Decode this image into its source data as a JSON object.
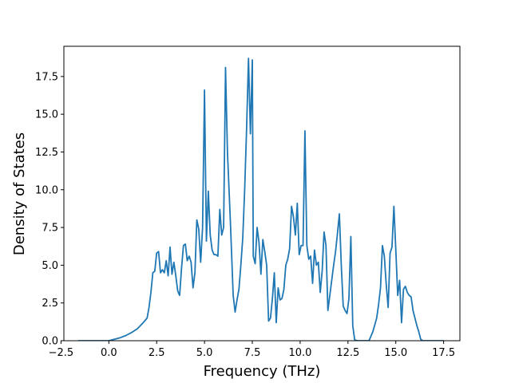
{
  "chart_data": {
    "type": "line",
    "title": "",
    "xlabel": "Frequency (THz)",
    "ylabel": "Density of States",
    "xlim": [
      -2.35,
      18.35
    ],
    "ylim": [
      0,
      19.5
    ],
    "xticks": [
      {
        "value": -2.5,
        "label": "−2.5"
      },
      {
        "value": 0.0,
        "label": "0.0"
      },
      {
        "value": 2.5,
        "label": "2.5"
      },
      {
        "value": 5.0,
        "label": "5.0"
      },
      {
        "value": 7.5,
        "label": "7.5"
      },
      {
        "value": 10.0,
        "label": "10.0"
      },
      {
        "value": 12.5,
        "label": "12.5"
      },
      {
        "value": 15.0,
        "label": "15.0"
      },
      {
        "value": 17.5,
        "label": "17.5"
      }
    ],
    "yticks": [
      {
        "value": 0.0,
        "label": "0.0"
      },
      {
        "value": 2.5,
        "label": "2.5"
      },
      {
        "value": 5.0,
        "label": "5.0"
      },
      {
        "value": 7.5,
        "label": "7.5"
      },
      {
        "value": 10.0,
        "label": "10.0"
      },
      {
        "value": 12.5,
        "label": "12.5"
      },
      {
        "value": 15.0,
        "label": "15.0"
      },
      {
        "value": 17.5,
        "label": "17.5"
      }
    ],
    "grid": false,
    "series": [
      {
        "color": "#1f77b4",
        "points": [
          [
            -1.6,
            0.0
          ],
          [
            -1.0,
            0.0
          ],
          [
            -0.5,
            0.0
          ],
          [
            0.0,
            0.0
          ],
          [
            0.3,
            0.1
          ],
          [
            0.6,
            0.2
          ],
          [
            0.9,
            0.35
          ],
          [
            1.2,
            0.55
          ],
          [
            1.5,
            0.8
          ],
          [
            1.8,
            1.2
          ],
          [
            2.0,
            1.5
          ],
          [
            2.1,
            2.2
          ],
          [
            2.2,
            3.2
          ],
          [
            2.3,
            4.5
          ],
          [
            2.4,
            4.6
          ],
          [
            2.5,
            5.8
          ],
          [
            2.6,
            5.9
          ],
          [
            2.7,
            4.5
          ],
          [
            2.8,
            4.7
          ],
          [
            2.9,
            4.5
          ],
          [
            3.0,
            5.3
          ],
          [
            3.1,
            4.3
          ],
          [
            3.2,
            6.2
          ],
          [
            3.3,
            4.4
          ],
          [
            3.4,
            5.2
          ],
          [
            3.5,
            4.3
          ],
          [
            3.6,
            3.3
          ],
          [
            3.7,
            3.0
          ],
          [
            3.8,
            4.8
          ],
          [
            3.9,
            6.3
          ],
          [
            4.0,
            6.4
          ],
          [
            4.1,
            5.3
          ],
          [
            4.2,
            5.6
          ],
          [
            4.3,
            5.2
          ],
          [
            4.4,
            3.5
          ],
          [
            4.5,
            4.5
          ],
          [
            4.6,
            8.0
          ],
          [
            4.7,
            7.4
          ],
          [
            4.8,
            5.2
          ],
          [
            4.9,
            7.5
          ],
          [
            5.0,
            16.6
          ],
          [
            5.1,
            6.6
          ],
          [
            5.2,
            9.9
          ],
          [
            5.3,
            7.0
          ],
          [
            5.4,
            6.0
          ],
          [
            5.5,
            5.7
          ],
          [
            5.6,
            5.7
          ],
          [
            5.7,
            5.6
          ],
          [
            5.8,
            8.7
          ],
          [
            5.9,
            7.0
          ],
          [
            6.0,
            7.5
          ],
          [
            6.1,
            18.1
          ],
          [
            6.2,
            12.5
          ],
          [
            6.35,
            8.0
          ],
          [
            6.5,
            3.0
          ],
          [
            6.6,
            1.9
          ],
          [
            6.7,
            2.7
          ],
          [
            6.8,
            3.4
          ],
          [
            6.9,
            5.0
          ],
          [
            7.0,
            6.8
          ],
          [
            7.1,
            10.0
          ],
          [
            7.2,
            14.0
          ],
          [
            7.3,
            18.7
          ],
          [
            7.4,
            13.7
          ],
          [
            7.5,
            18.6
          ],
          [
            7.55,
            5.6
          ],
          [
            7.65,
            5.1
          ],
          [
            7.75,
            7.5
          ],
          [
            7.85,
            6.5
          ],
          [
            7.95,
            4.4
          ],
          [
            8.05,
            6.7
          ],
          [
            8.15,
            5.9
          ],
          [
            8.25,
            5.0
          ],
          [
            8.35,
            1.3
          ],
          [
            8.45,
            1.5
          ],
          [
            8.55,
            2.8
          ],
          [
            8.65,
            4.5
          ],
          [
            8.75,
            1.2
          ],
          [
            8.85,
            3.5
          ],
          [
            8.95,
            2.7
          ],
          [
            9.05,
            2.8
          ],
          [
            9.15,
            3.4
          ],
          [
            9.25,
            5.0
          ],
          [
            9.35,
            5.4
          ],
          [
            9.45,
            6.1
          ],
          [
            9.55,
            8.9
          ],
          [
            9.65,
            8.2
          ],
          [
            9.75,
            7.0
          ],
          [
            9.85,
            9.1
          ],
          [
            9.95,
            5.7
          ],
          [
            10.05,
            6.3
          ],
          [
            10.15,
            6.3
          ],
          [
            10.25,
            13.9
          ],
          [
            10.35,
            6.3
          ],
          [
            10.45,
            5.4
          ],
          [
            10.55,
            5.6
          ],
          [
            10.65,
            3.8
          ],
          [
            10.75,
            6.0
          ],
          [
            10.85,
            5.0
          ],
          [
            10.95,
            5.2
          ],
          [
            11.05,
            3.2
          ],
          [
            11.15,
            4.6
          ],
          [
            11.25,
            7.2
          ],
          [
            11.35,
            6.3
          ],
          [
            11.45,
            2.0
          ],
          [
            11.55,
            3.0
          ],
          [
            11.65,
            4.0
          ],
          [
            11.75,
            5.0
          ],
          [
            11.85,
            5.9
          ],
          [
            11.95,
            7.1
          ],
          [
            12.05,
            8.4
          ],
          [
            12.15,
            5.0
          ],
          [
            12.25,
            2.3
          ],
          [
            12.35,
            2.0
          ],
          [
            12.45,
            1.8
          ],
          [
            12.55,
            2.8
          ],
          [
            12.65,
            6.9
          ],
          [
            12.75,
            1.0
          ],
          [
            12.85,
            0.05
          ],
          [
            13.0,
            0.0
          ],
          [
            13.3,
            0.0
          ],
          [
            13.6,
            0.0
          ],
          [
            13.8,
            0.6
          ],
          [
            14.0,
            1.5
          ],
          [
            14.1,
            2.4
          ],
          [
            14.2,
            3.5
          ],
          [
            14.3,
            6.3
          ],
          [
            14.4,
            5.6
          ],
          [
            14.5,
            3.7
          ],
          [
            14.6,
            2.2
          ],
          [
            14.7,
            5.8
          ],
          [
            14.8,
            6.2
          ],
          [
            14.9,
            8.9
          ],
          [
            15.0,
            6.0
          ],
          [
            15.1,
            3.0
          ],
          [
            15.2,
            4.0
          ],
          [
            15.3,
            1.2
          ],
          [
            15.4,
            3.4
          ],
          [
            15.5,
            3.6
          ],
          [
            15.6,
            3.2
          ],
          [
            15.7,
            3.0
          ],
          [
            15.8,
            2.9
          ],
          [
            15.9,
            2.0
          ],
          [
            16.0,
            1.5
          ],
          [
            16.1,
            1.0
          ],
          [
            16.2,
            0.6
          ],
          [
            16.3,
            0.1
          ],
          [
            16.4,
            0.0
          ],
          [
            17.0,
            0.0
          ],
          [
            17.5,
            0.0
          ]
        ]
      }
    ]
  }
}
